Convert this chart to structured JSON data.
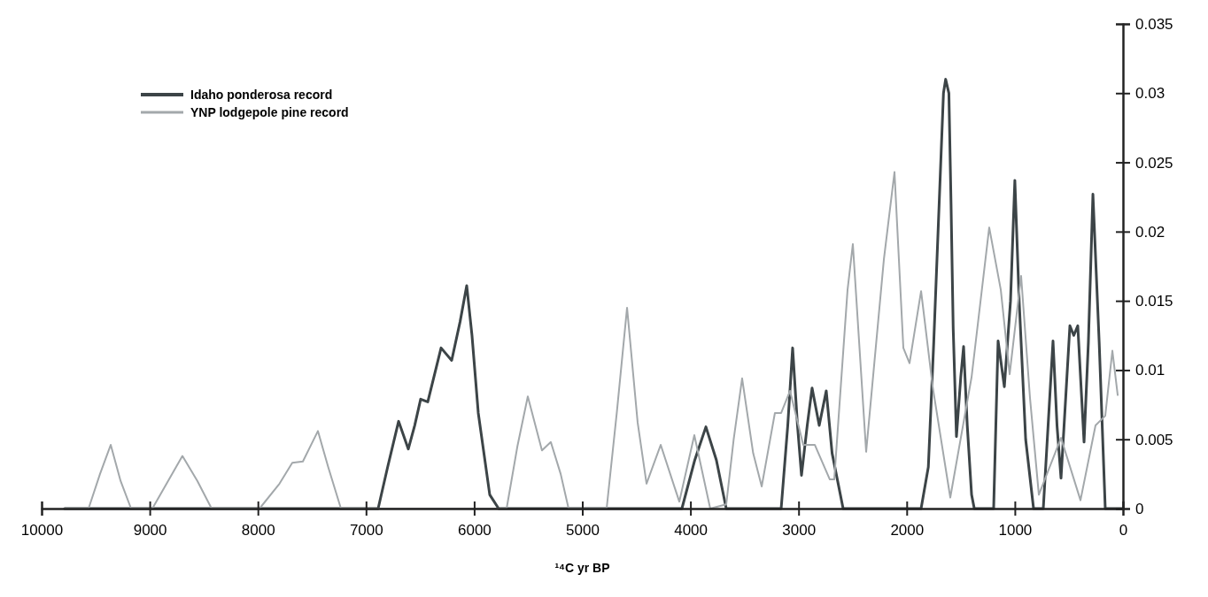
{
  "chart_data": {
    "type": "line",
    "xlabel": "¹⁴C yr BP",
    "xlim": [
      10000,
      0
    ],
    "xticks": [
      10000,
      9000,
      8000,
      7000,
      6000,
      5000,
      4000,
      3000,
      2000,
      1000,
      0
    ],
    "ylim": [
      0,
      0.035
    ],
    "yticks": [
      0,
      0.005,
      0.01,
      0.015,
      0.02,
      0.025,
      0.03,
      0.035
    ],
    "grid": false,
    "legend": "top left",
    "marker": "none",
    "line_style": "solid",
    "series": [
      {
        "name": "Idaho ponderosa record",
        "color": "#3c4447",
        "x": [
          9787,
          7000,
          6888,
          6800,
          6699,
          6609,
          6550,
          6495,
          6429,
          6306,
          6208,
          6130,
          6069,
          6020,
          5962,
          5856,
          5774,
          4079,
          3960,
          3857,
          3760,
          3669,
          3161,
          3100,
          3055,
          3010,
          2973,
          2920,
          2875,
          2809,
          2744,
          2690,
          2588,
          1867,
          1800,
          1750,
          1700,
          1660,
          1640,
          1610,
          1590,
          1570,
          1540,
          1500,
          1474,
          1440,
          1400,
          1375,
          1196,
          1155,
          1097,
          1040,
          1000,
          960,
          900,
          827,
          737,
          647,
          610,
          573,
          491,
          455,
          418,
          360,
          320,
          278,
          220,
          164,
          0
        ],
        "values": [
          0,
          0,
          0,
          0.003,
          0.0063,
          0.0043,
          0.006,
          0.0079,
          0.0077,
          0.0116,
          0.0107,
          0.0135,
          0.0161,
          0.0125,
          0.0069,
          0.001,
          0,
          0,
          0.0035,
          0.0059,
          0.0035,
          0,
          0,
          0.006,
          0.0116,
          0.006,
          0.0024,
          0.006,
          0.0087,
          0.006,
          0.0085,
          0.004,
          0,
          0,
          0.003,
          0.012,
          0.022,
          0.03,
          0.031,
          0.03,
          0.022,
          0.013,
          0.0052,
          0.0095,
          0.0117,
          0.006,
          0.001,
          0,
          0,
          0.0121,
          0.0088,
          0.015,
          0.0237,
          0.015,
          0.005,
          0,
          0,
          0.0121,
          0.006,
          0.0022,
          0.0132,
          0.0125,
          0.0132,
          0.0048,
          0.012,
          0.0227,
          0.012,
          0,
          0
        ]
      },
      {
        "name": "YNP lodgepole pine record",
        "color": "#a3a8ab",
        "x": [
          9787,
          9566,
          9460,
          9361,
          9270,
          9173,
          8976,
          8830,
          8698,
          8560,
          8428,
          7985,
          7800,
          7682,
          7584,
          7445,
          7350,
          7232,
          5700,
          5600,
          5504,
          5373,
          5291,
          5200,
          5127,
          4775,
          4680,
          4586,
          4488,
          4406,
          4275,
          4103,
          3964,
          3817,
          3669,
          3600,
          3522,
          3420,
          3341,
          3219,
          3161,
          3079,
          2957,
          2850,
          2711,
          2670,
          2547,
          2498,
          2375,
          2211,
          2113,
          2031,
          1974,
          1867,
          1760,
          1597,
          1400,
          1237,
          1130,
          1048,
          942,
          860,
          778,
          573,
          393,
          254,
          164,
          98,
          49
        ],
        "values": [
          0,
          0,
          0.0025,
          0.0046,
          0.002,
          0,
          0,
          0.002,
          0.0038,
          0.002,
          0,
          0,
          0.0018,
          0.0033,
          0.0034,
          0.0056,
          0.003,
          0,
          0,
          0.0045,
          0.0081,
          0.0042,
          0.0048,
          0.0025,
          0,
          0,
          0.007,
          0.0145,
          0.0062,
          0.0018,
          0.0046,
          0.0005,
          0.0053,
          0,
          0.0003,
          0.005,
          0.0094,
          0.004,
          0.0016,
          0.0069,
          0.0069,
          0.0085,
          0.0046,
          0.0046,
          0.0021,
          0.0021,
          0.0158,
          0.0191,
          0.0041,
          0.018,
          0.0243,
          0.0116,
          0.0105,
          0.0157,
          0.0088,
          0.0008,
          0.0095,
          0.0203,
          0.0158,
          0.0097,
          0.0168,
          0.008,
          0.001,
          0.0051,
          0.0006,
          0.006,
          0.0067,
          0.0114,
          0.0082
        ]
      }
    ]
  }
}
